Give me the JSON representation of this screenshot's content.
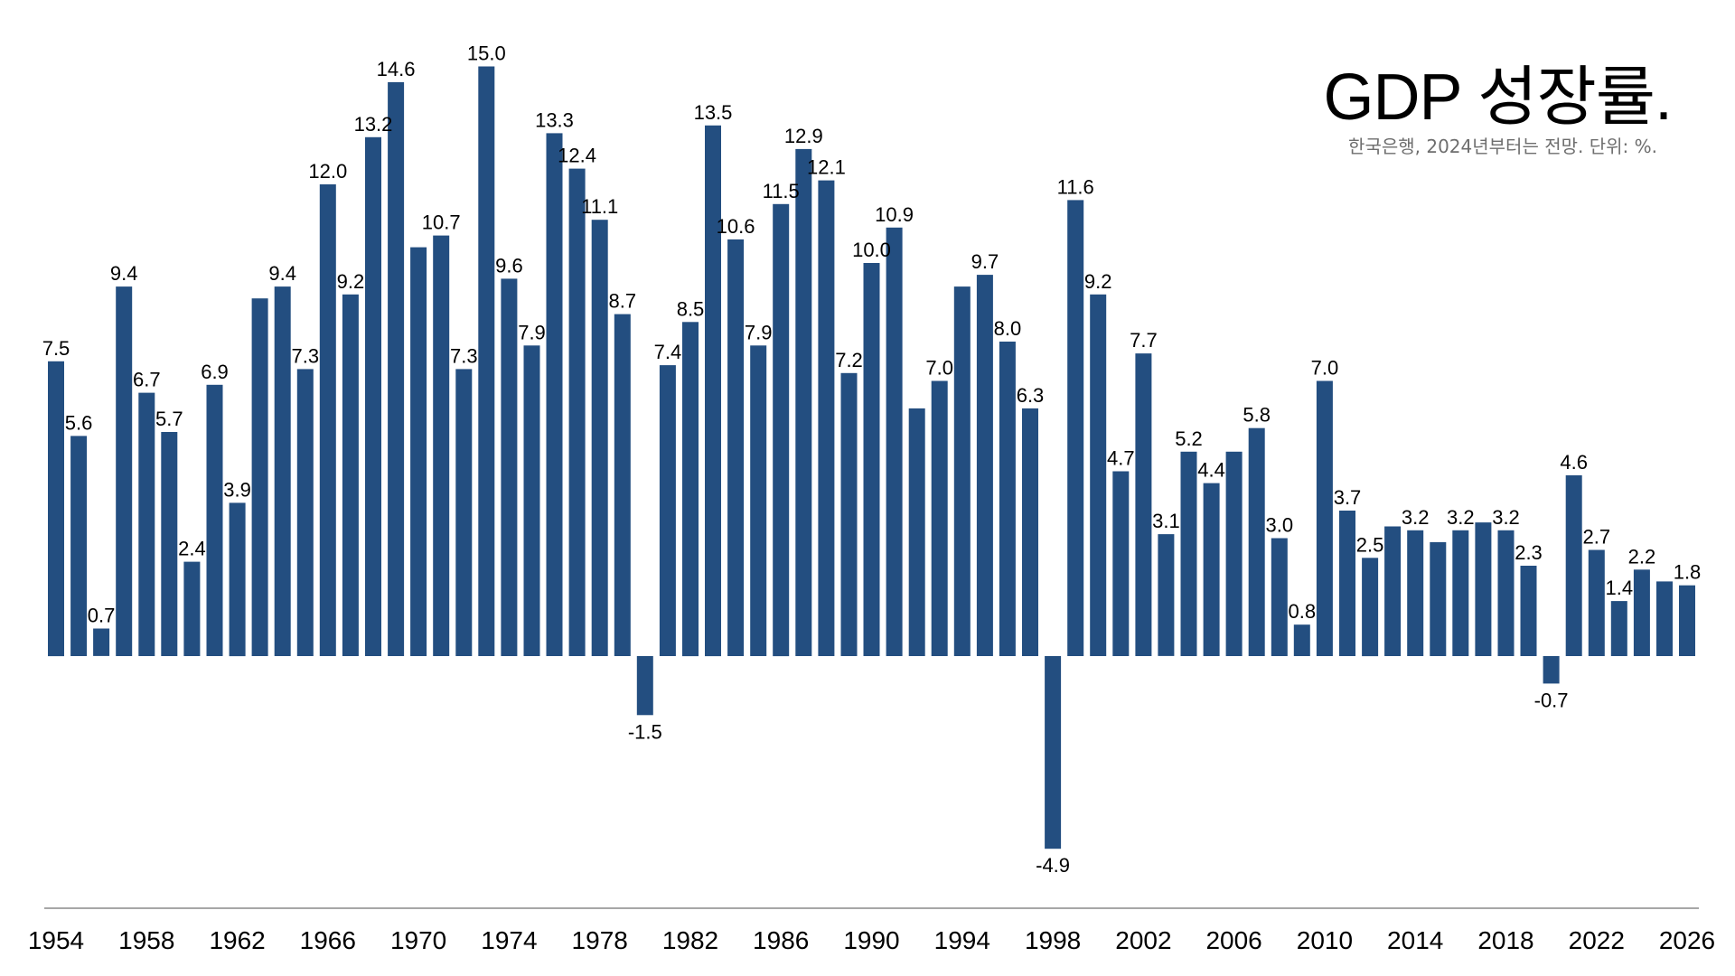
{
  "chart_data": {
    "type": "bar",
    "title": "GDP 성장률.",
    "subtitle": "한국은행, 2024년부터는 전망. 단위: %.",
    "bar_color": "#234e80",
    "categories": [
      1954,
      1955,
      1956,
      1957,
      1958,
      1959,
      1960,
      1961,
      1962,
      1963,
      1964,
      1965,
      1966,
      1967,
      1968,
      1969,
      1970,
      1971,
      1972,
      1973,
      1974,
      1975,
      1976,
      1977,
      1978,
      1979,
      1980,
      1981,
      1982,
      1983,
      1984,
      1985,
      1986,
      1987,
      1988,
      1989,
      1990,
      1991,
      1992,
      1993,
      1994,
      1995,
      1996,
      1997,
      1998,
      1999,
      2000,
      2001,
      2002,
      2003,
      2004,
      2005,
      2006,
      2007,
      2008,
      2009,
      2010,
      2011,
      2012,
      2013,
      2014,
      2015,
      2016,
      2017,
      2018,
      2019,
      2020,
      2021,
      2022,
      2023,
      2024,
      2025,
      2026
    ],
    "values": [
      7.5,
      5.6,
      0.7,
      9.4,
      6.7,
      5.7,
      2.4,
      6.9,
      3.9,
      9.1,
      9.4,
      7.3,
      12.0,
      9.2,
      13.2,
      14.6,
      10.4,
      10.7,
      7.3,
      15.0,
      9.6,
      7.9,
      13.3,
      12.4,
      11.1,
      8.7,
      -1.5,
      7.4,
      8.5,
      13.5,
      10.6,
      7.9,
      11.5,
      12.9,
      12.1,
      7.2,
      10.0,
      10.9,
      6.3,
      7.0,
      9.4,
      9.7,
      8.0,
      6.3,
      -4.9,
      11.6,
      9.2,
      4.7,
      7.7,
      3.1,
      5.2,
      4.4,
      5.2,
      5.8,
      3.0,
      0.8,
      7.0,
      3.7,
      2.5,
      3.3,
      3.2,
      2.9,
      3.2,
      3.4,
      3.2,
      2.3,
      -0.7,
      4.6,
      2.7,
      1.4,
      2.2,
      1.9,
      1.8
    ],
    "labels": [
      "7.5",
      "5.6",
      "0.7",
      "9.4",
      "6.7",
      "5.7",
      "2.4",
      "6.9",
      "3.9",
      "",
      "9.4",
      "7.3",
      "12.0",
      "9.2",
      "13.2",
      "14.6",
      "",
      "10.7",
      "7.3",
      "15.0",
      "9.6",
      "7.9",
      "13.3",
      "12.4",
      "11.1",
      "8.7",
      "-1.5",
      "7.4",
      "8.5",
      "13.5",
      "10.6",
      "7.9",
      "11.5",
      "12.9",
      "12.1",
      "7.2",
      "10.0",
      "10.9",
      "",
      "7.0",
      "",
      "9.7",
      "8.0",
      "6.3",
      "-4.9",
      "11.6",
      "9.2",
      "4.7",
      "7.7",
      "3.1",
      "5.2",
      "4.4",
      "",
      "5.8",
      "3.0",
      "0.8",
      "7.0",
      "3.7",
      "2.5",
      "",
      "3.2",
      "",
      "3.2",
      "",
      "3.2",
      "2.3",
      "-0.7",
      "4.6",
      "2.7",
      "1.4",
      "2.2",
      "",
      "1.8"
    ],
    "x_ticks": [
      "1954",
      "1958",
      "1962",
      "1966",
      "1970",
      "1974",
      "1978",
      "1982",
      "1986",
      "1990",
      "1994",
      "1998",
      "2002",
      "2006",
      "2010",
      "2014",
      "2018",
      "2022",
      "2026"
    ],
    "ylim": [
      -6,
      16
    ],
    "grid": false,
    "legend": "none"
  }
}
